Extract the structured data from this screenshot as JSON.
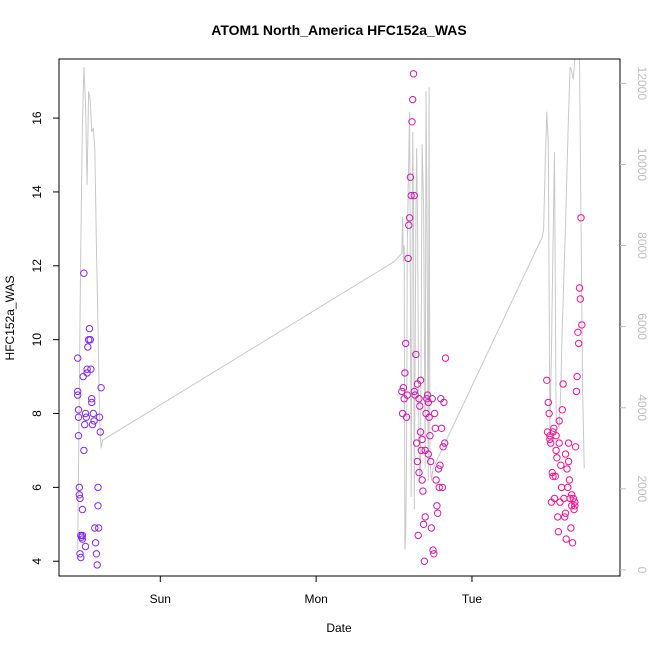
{
  "chart_data": {
    "type": "scatter",
    "title": "ATOM1 North_America HFC152a_WAS",
    "xlabel": "Date",
    "ylabel": "HFC152a_WAS",
    "x_ticks": [
      "Sun",
      "Mon",
      "Tue"
    ],
    "x_tick_days": [
      1,
      2,
      3
    ],
    "xlim_days": [
      0.35,
      3.95
    ],
    "ylim": [
      3.6,
      17.6
    ],
    "y_ticks": [
      4,
      6,
      8,
      10,
      12,
      14,
      16
    ],
    "y2lim": [
      -150,
      12600
    ],
    "y2_ticks": [
      0,
      2000,
      4000,
      6000,
      8000,
      10000,
      12000
    ],
    "y2_axis_color": "#bebebe",
    "point_color_start": "#7b2cf0",
    "point_color_end": "#f0148c",
    "altitude_line_color": "#c8c8c8",
    "points": [
      [
        0.47,
        9.5
      ],
      [
        0.47,
        8.6
      ],
      [
        0.47,
        8.5
      ],
      [
        0.475,
        8.1
      ],
      [
        0.475,
        7.9
      ],
      [
        0.475,
        7.4
      ],
      [
        0.48,
        6.0
      ],
      [
        0.48,
        5.8
      ],
      [
        0.485,
        5.7
      ],
      [
        0.485,
        4.2
      ],
      [
        0.49,
        4.1
      ],
      [
        0.49,
        4.7
      ],
      [
        0.495,
        4.65
      ],
      [
        0.5,
        4.7
      ],
      [
        0.5,
        4.6
      ],
      [
        0.505,
        9.0
      ],
      [
        0.51,
        11.8
      ],
      [
        0.51,
        7.0
      ],
      [
        0.515,
        7.7
      ],
      [
        0.52,
        8.0
      ],
      [
        0.525,
        7.9
      ],
      [
        0.53,
        9.1
      ],
      [
        0.53,
        9.2
      ],
      [
        0.535,
        9.8
      ],
      [
        0.54,
        10.0
      ],
      [
        0.545,
        10.3
      ],
      [
        0.55,
        10.0
      ],
      [
        0.55,
        10.0
      ],
      [
        0.555,
        9.2
      ],
      [
        0.56,
        8.4
      ],
      [
        0.56,
        8.3
      ],
      [
        0.565,
        7.7
      ],
      [
        0.57,
        8.0
      ],
      [
        0.575,
        7.8
      ],
      [
        0.58,
        4.9
      ],
      [
        0.585,
        4.5
      ],
      [
        0.59,
        4.2
      ],
      [
        0.595,
        3.9
      ],
      [
        0.6,
        6.0
      ],
      [
        0.6,
        5.5
      ],
      [
        0.605,
        4.9
      ],
      [
        0.61,
        7.9
      ],
      [
        0.615,
        7.5
      ],
      [
        0.62,
        8.7
      ],
      [
        0.5,
        5.4
      ],
      [
        0.52,
        4.4
      ],
      [
        2.55,
        8.6
      ],
      [
        2.555,
        8.0
      ],
      [
        2.56,
        8.7
      ],
      [
        2.565,
        8.4
      ],
      [
        2.57,
        9.1
      ],
      [
        2.575,
        9.9
      ],
      [
        2.58,
        7.9
      ],
      [
        2.585,
        8.5
      ],
      [
        2.59,
        12.2
      ],
      [
        2.595,
        13.1
      ],
      [
        2.6,
        13.3
      ],
      [
        2.605,
        14.4
      ],
      [
        2.61,
        13.9
      ],
      [
        2.615,
        15.9
      ],
      [
        2.62,
        16.5
      ],
      [
        2.625,
        17.2
      ],
      [
        2.63,
        13.9
      ],
      [
        2.63,
        8.6
      ],
      [
        2.635,
        8.5
      ],
      [
        2.64,
        9.6
      ],
      [
        2.645,
        7.2
      ],
      [
        2.65,
        6.7
      ],
      [
        2.655,
        4.7
      ],
      [
        2.66,
        6.4
      ],
      [
        2.665,
        8.2
      ],
      [
        2.67,
        8.9
      ],
      [
        2.675,
        7.0
      ],
      [
        2.68,
        6.2
      ],
      [
        2.685,
        5.9
      ],
      [
        2.69,
        5.0
      ],
      [
        2.695,
        4.0
      ],
      [
        2.7,
        5.2
      ],
      [
        2.705,
        8.0
      ],
      [
        2.71,
        8.4
      ],
      [
        2.715,
        8.5
      ],
      [
        2.72,
        8.3
      ],
      [
        2.725,
        7.9
      ],
      [
        2.73,
        7.4
      ],
      [
        2.735,
        6.7
      ],
      [
        2.74,
        4.9
      ],
      [
        2.745,
        8.4
      ],
      [
        2.75,
        4.3
      ],
      [
        2.755,
        4.2
      ],
      [
        2.76,
        8.0
      ],
      [
        2.765,
        7.6
      ],
      [
        2.77,
        6.2
      ],
      [
        2.775,
        5.5
      ],
      [
        2.78,
        5.3
      ],
      [
        2.785,
        6.5
      ],
      [
        2.79,
        6.0
      ],
      [
        2.795,
        6.6
      ],
      [
        2.8,
        8.4
      ],
      [
        2.805,
        7.6
      ],
      [
        2.81,
        6.0
      ],
      [
        2.815,
        7.1
      ],
      [
        2.82,
        8.3
      ],
      [
        2.825,
        7.2
      ],
      [
        2.83,
        9.5
      ],
      [
        2.65,
        8.8
      ],
      [
        2.66,
        8.4
      ],
      [
        2.67,
        7.5
      ],
      [
        2.68,
        7.3
      ],
      [
        2.7,
        7.0
      ],
      [
        2.72,
        6.9
      ],
      [
        3.48,
        8.9
      ],
      [
        3.485,
        7.5
      ],
      [
        3.49,
        8.3
      ],
      [
        3.495,
        8.0
      ],
      [
        3.5,
        7.4
      ],
      [
        3.505,
        7.2
      ],
      [
        3.51,
        5.6
      ],
      [
        3.515,
        6.4
      ],
      [
        3.52,
        6.3
      ],
      [
        3.525,
        7.6
      ],
      [
        3.53,
        5.7
      ],
      [
        3.535,
        6.3
      ],
      [
        3.54,
        7.0
      ],
      [
        3.545,
        6.8
      ],
      [
        3.55,
        5.2
      ],
      [
        3.555,
        4.8
      ],
      [
        3.56,
        7.8
      ],
      [
        3.565,
        5.6
      ],
      [
        3.57,
        6.6
      ],
      [
        3.575,
        6.0
      ],
      [
        3.58,
        8.1
      ],
      [
        3.585,
        8.8
      ],
      [
        3.59,
        5.7
      ],
      [
        3.595,
        5.2
      ],
      [
        3.6,
        5.3
      ],
      [
        3.605,
        4.6
      ],
      [
        3.61,
        6.5
      ],
      [
        3.615,
        6.0
      ],
      [
        3.62,
        7.2
      ],
      [
        3.625,
        6.2
      ],
      [
        3.63,
        5.7
      ],
      [
        3.635,
        4.9
      ],
      [
        3.64,
        5.5
      ],
      [
        3.645,
        4.5
      ],
      [
        3.65,
        5.7
      ],
      [
        3.655,
        5.4
      ],
      [
        3.66,
        5.6
      ],
      [
        3.665,
        7.1
      ],
      [
        3.67,
        8.6
      ],
      [
        3.675,
        9.0
      ],
      [
        3.68,
        10.2
      ],
      [
        3.685,
        9.9
      ],
      [
        3.69,
        11.4
      ],
      [
        3.695,
        11.1
      ],
      [
        3.7,
        13.3
      ],
      [
        3.705,
        10.4
      ],
      [
        3.5,
        7.3
      ],
      [
        3.52,
        7.5
      ],
      [
        3.54,
        7.4
      ],
      [
        3.56,
        7.2
      ],
      [
        3.6,
        6.9
      ],
      [
        3.62,
        6.7
      ],
      [
        3.64,
        5.8
      ],
      [
        3.66,
        5.5
      ]
    ],
    "altitude_series": [
      [
        0.47,
        500
      ],
      [
        0.49,
        8000
      ],
      [
        0.5,
        11000
      ],
      [
        0.51,
        12400
      ],
      [
        0.52,
        11500
      ],
      [
        0.53,
        9500
      ],
      [
        0.54,
        11800
      ],
      [
        0.55,
        11600
      ],
      [
        0.56,
        10800
      ],
      [
        0.57,
        10900
      ],
      [
        0.58,
        10400
      ],
      [
        0.59,
        8000
      ],
      [
        0.6,
        6000
      ],
      [
        0.61,
        3800
      ],
      [
        0.62,
        3000
      ],
      [
        0.63,
        3200
      ],
      [
        2.5,
        7600
      ],
      [
        2.55,
        7800
      ],
      [
        2.555,
        8700
      ],
      [
        2.56,
        7600
      ],
      [
        2.565,
        8000
      ],
      [
        2.57,
        500
      ],
      [
        2.575,
        900
      ],
      [
        2.58,
        2600
      ],
      [
        2.585,
        8000
      ],
      [
        2.59,
        9300
      ],
      [
        2.6,
        11300
      ],
      [
        2.61,
        1800
      ],
      [
        2.62,
        10800
      ],
      [
        2.625,
        9000
      ],
      [
        2.63,
        1500
      ],
      [
        2.64,
        8700
      ],
      [
        2.645,
        10400
      ],
      [
        2.65,
        9000
      ],
      [
        2.66,
        3000
      ],
      [
        2.665,
        2200
      ],
      [
        2.67,
        2500
      ],
      [
        2.68,
        10500
      ],
      [
        2.69,
        9000
      ],
      [
        2.7,
        2500
      ],
      [
        2.705,
        11800
      ],
      [
        2.71,
        9500
      ],
      [
        2.72,
        2200
      ],
      [
        2.725,
        11900
      ],
      [
        2.73,
        2700
      ],
      [
        2.74,
        2200
      ],
      [
        2.75,
        2500
      ],
      [
        3.45,
        8200
      ],
      [
        3.46,
        8400
      ],
      [
        3.47,
        10000
      ],
      [
        3.48,
        11300
      ],
      [
        3.49,
        10500
      ],
      [
        3.5,
        3500
      ],
      [
        3.51,
        5300
      ],
      [
        3.52,
        8000
      ],
      [
        3.53,
        10300
      ],
      [
        3.54,
        3800
      ],
      [
        3.55,
        3600
      ],
      [
        3.56,
        3500
      ],
      [
        3.57,
        4500
      ],
      [
        3.58,
        6000
      ],
      [
        3.6,
        8500
      ],
      [
        3.62,
        11300
      ],
      [
        3.63,
        12400
      ],
      [
        3.64,
        12300
      ],
      [
        3.65,
        12100
      ],
      [
        3.66,
        12600
      ],
      [
        3.67,
        12600
      ],
      [
        3.68,
        12600
      ],
      [
        3.69,
        12600
      ],
      [
        3.7,
        8600
      ],
      [
        3.71,
        4500
      ],
      [
        3.72,
        2500
      ]
    ]
  }
}
